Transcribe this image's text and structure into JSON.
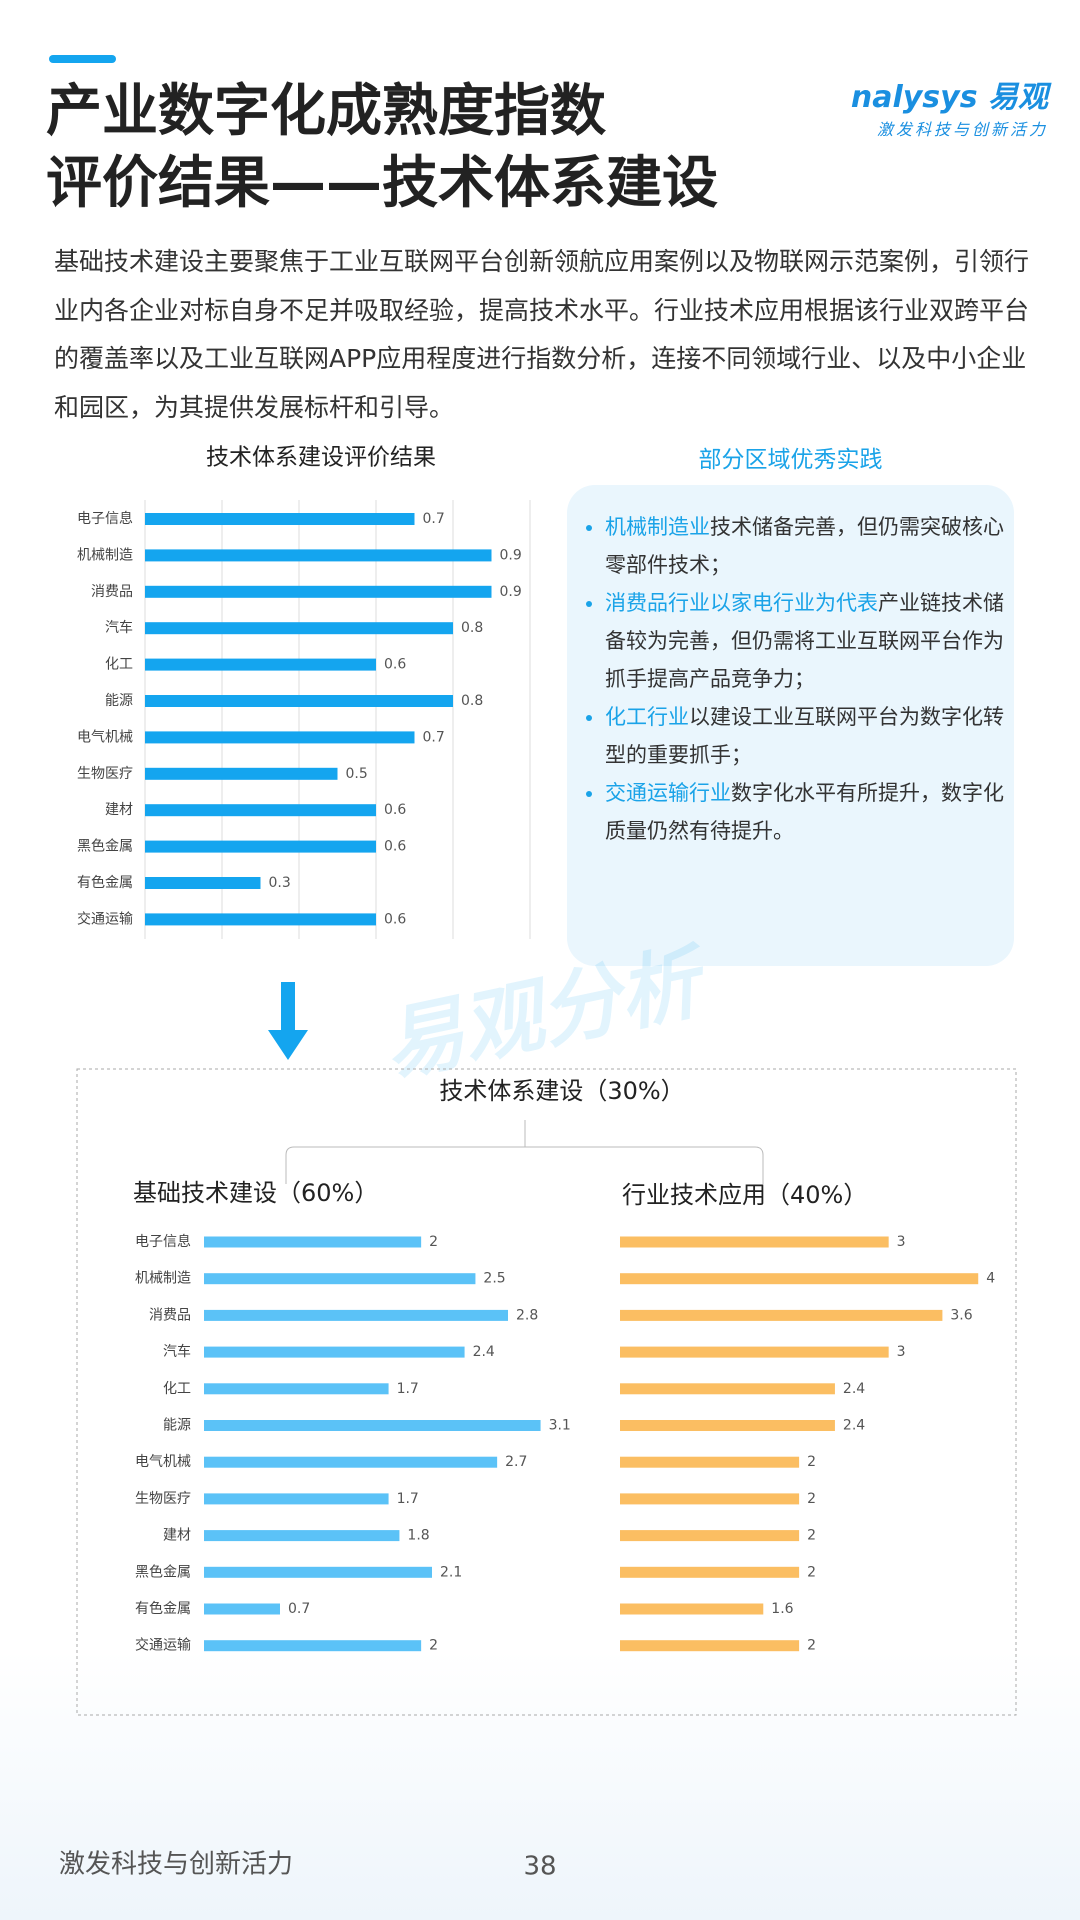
{
  "header": {
    "title_line1": "产业数字化成熟度指数",
    "title_line2": "评价结果——技术体系建设",
    "logo": "nalysys 易观",
    "tagline": "激发科技与创新活力"
  },
  "intro": "基础技术建设主要聚焦于工业互联网平台创新领航应用案例以及物联网示范案例，引领行业内各企业对标自身不足并吸取经验，提高技术水平。行业技术应用根据该行业双跨平台的覆盖率以及工业互联网APP应用程度进行指数分析，连接不同领域行业、以及中小企业和园区，为其提供发展标杆和引导。",
  "practice": {
    "title": "部分区域优秀实践",
    "items": [
      {
        "highlight": "机械制造业",
        "text": "技术储备完善，但仍需突破核心零部件技术；"
      },
      {
        "highlight": "消费品行业以家电行业为代表",
        "text": "产业链技术储备较为完善，但仍需将工业互联网平台作为抓手提高产品竞争力；"
      },
      {
        "highlight": "化工行业",
        "text": "以建设工业互联网平台为数字化转型的重要抓手；"
      },
      {
        "highlight": "交通运输行业",
        "text": "数字化水平有所提升，数字化质量仍然有待提升。"
      }
    ]
  },
  "section_title": "技术体系建设（30%）",
  "watermark": "易观分析",
  "chart_data": [
    {
      "type": "bar",
      "orientation": "horizontal",
      "title": "技术体系建设评价结果",
      "color": "#14a5ef",
      "categories": [
        "电子信息",
        "机械制造",
        "消费品",
        "汽车",
        "化工",
        "能源",
        "电气机械",
        "生物医疗",
        "建材",
        "黑色金属",
        "有色金属",
        "交通运输"
      ],
      "values": [
        0.7,
        0.9,
        0.9,
        0.8,
        0.6,
        0.8,
        0.7,
        0.5,
        0.6,
        0.6,
        0.3,
        0.6
      ],
      "xlim": [
        0,
        1
      ],
      "xticks": [
        0,
        0.2,
        0.4,
        0.6,
        0.8,
        1
      ],
      "grid": true
    },
    {
      "type": "bar",
      "orientation": "horizontal",
      "title": "基础技术建设（60%）",
      "color": "#5bc2f7",
      "categories": [
        "电子信息",
        "机械制造",
        "消费品",
        "汽车",
        "化工",
        "能源",
        "电气机械",
        "生物医疗",
        "建材",
        "黑色金属",
        "有色金属",
        "交通运输"
      ],
      "values": [
        2,
        2.5,
        2.8,
        2.4,
        1.7,
        3.1,
        2.7,
        1.7,
        1.8,
        2.1,
        0.7,
        2
      ],
      "xlim": [
        0,
        3.5
      ],
      "grid": false
    },
    {
      "type": "bar",
      "orientation": "horizontal",
      "title": "行业技术应用（40%）",
      "color": "#fbbe62",
      "categories": [
        "电子信息",
        "机械制造",
        "消费品",
        "汽车",
        "化工",
        "能源",
        "电气机械",
        "生物医疗",
        "建材",
        "黑色金属",
        "有色金属",
        "交通运输"
      ],
      "values": [
        3,
        4,
        3.6,
        3,
        2.4,
        2.4,
        2,
        2,
        2,
        2,
        1.6,
        2
      ],
      "xlim": [
        0,
        4.5
      ],
      "grid": false
    }
  ],
  "footer": {
    "text": "激发科技与创新活力",
    "page": "38"
  }
}
